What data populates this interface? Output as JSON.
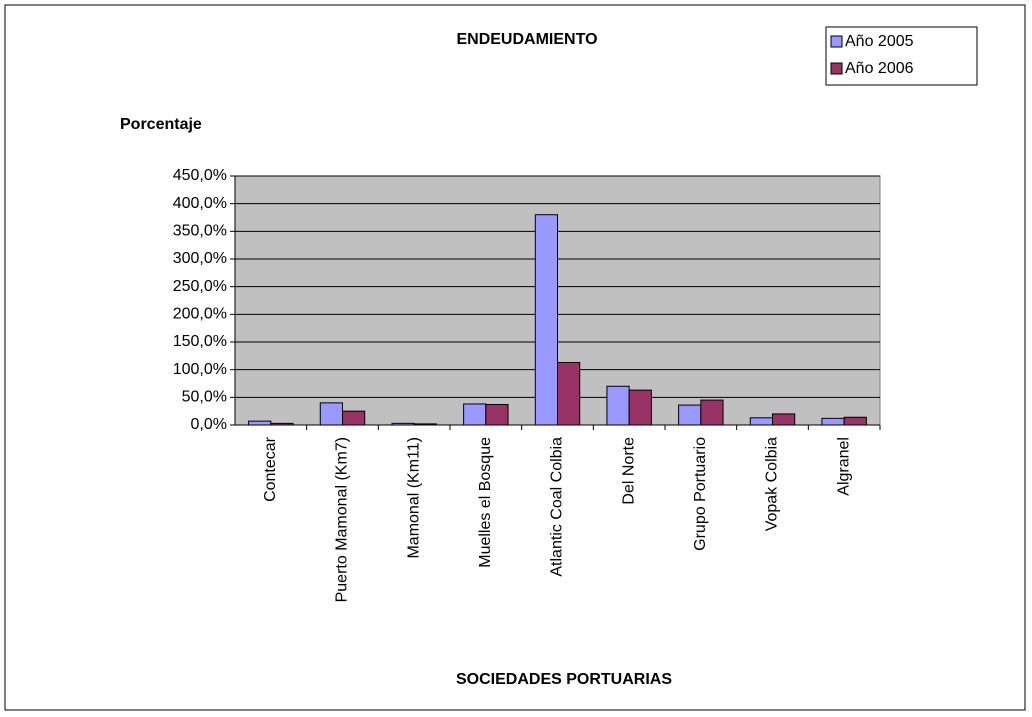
{
  "chart_data": {
    "type": "bar",
    "title": "ENDEUDAMIENTO",
    "y_label": "Porcentaje",
    "x_label": "SOCIEDADES  PORTUARIAS",
    "categories": [
      "Contecar",
      "Puerto Mamonal (Km7)",
      "Mamonal (Km11)",
      "Muelles el Bosque",
      "Atlantic Coal  Colbia",
      "Del Norte",
      "Grupo Portuario",
      "Vopak  Colbia",
      "Algranel"
    ],
    "series": [
      {
        "name": "Año 2005",
        "color": "#9999ff",
        "values": [
          7,
          40,
          3,
          38,
          380,
          70,
          36,
          13,
          12
        ]
      },
      {
        "name": "Año 2006",
        "color": "#993366",
        "values": [
          3,
          25,
          2,
          37,
          113,
          63,
          45,
          20,
          14
        ]
      }
    ],
    "ylim": [
      0,
      450
    ],
    "yticks": [
      {
        "value": 0,
        "label": "0,0%"
      },
      {
        "value": 50,
        "label": "50,0%"
      },
      {
        "value": 100,
        "label": "100,0%"
      },
      {
        "value": 150,
        "label": "150,0%"
      },
      {
        "value": 200,
        "label": "200,0%"
      },
      {
        "value": 250,
        "label": "250,0%"
      },
      {
        "value": 300,
        "label": "300,0%"
      },
      {
        "value": 350,
        "label": "350,0%"
      },
      {
        "value": 400,
        "label": "400,0%"
      },
      {
        "value": 450,
        "label": "450,0%"
      }
    ],
    "grid": true,
    "plot_background": "#c0c0c0",
    "legend": "top-right"
  }
}
